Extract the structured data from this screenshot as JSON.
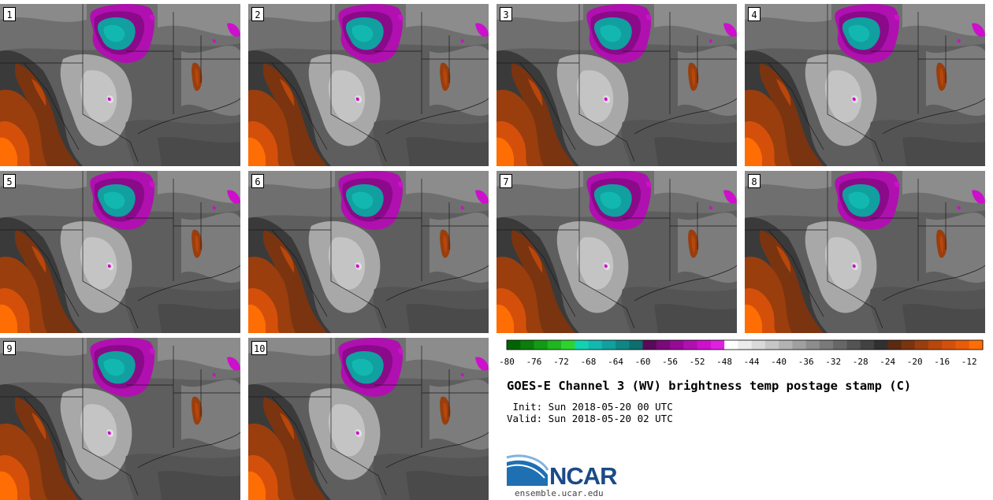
{
  "panels": [
    {
      "label": "1"
    },
    {
      "label": "2"
    },
    {
      "label": "3"
    },
    {
      "label": "4"
    },
    {
      "label": "5"
    },
    {
      "label": "6"
    },
    {
      "label": "7"
    },
    {
      "label": "8"
    },
    {
      "label": "9"
    },
    {
      "label": "10"
    }
  ],
  "colorbar": {
    "min": -80,
    "max": -10,
    "step": 2,
    "tick_labels": [
      "-80",
      "-76",
      "-72",
      "-68",
      "-64",
      "-60",
      "-56",
      "-52",
      "-48",
      "-44",
      "-40",
      "-36",
      "-32",
      "-28",
      "-24",
      "-20",
      "-16",
      "-12"
    ],
    "colors": [
      "#006400",
      "#0b7d0b",
      "#139a13",
      "#1fb61f",
      "#2ed42e",
      "#10d4b0",
      "#12b8b0",
      "#119f9f",
      "#0f8686",
      "#0d6e6e",
      "#5a0a5a",
      "#7a0a7a",
      "#960a96",
      "#b010b0",
      "#cc10cc",
      "#e020e0",
      "#ffffff",
      "#ececec",
      "#d9d9d9",
      "#c6c6c6",
      "#b3b3b3",
      "#a0a0a0",
      "#8d8d8d",
      "#7a7a7a",
      "#676767",
      "#545454",
      "#424242",
      "#303030",
      "#5a2a12",
      "#7a3410",
      "#9a3e0e",
      "#b8470c",
      "#d4500a",
      "#e85c08",
      "#ff6e04"
    ]
  },
  "title": "GOES-E Channel 3 (WV) brightness temp postage stamp (C)",
  "init_text": " Init: Sun 2018-05-20 00 UTC",
  "valid_text": "Valid: Sun 2018-05-20 02 UTC",
  "logo": {
    "name": "NCAR",
    "url": "ensemble.ucar.edu"
  }
}
